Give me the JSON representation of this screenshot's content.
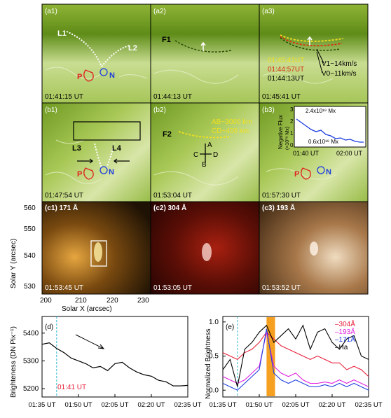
{
  "panels_a": [
    {
      "label": "(a1)",
      "time": "01:41:15 UT"
    },
    {
      "label": "(a2)",
      "time": "01:44:13 UT"
    },
    {
      "label": "(a3)",
      "time": "01:45:41 UT"
    }
  ],
  "panels_b": [
    {
      "label": "(b1)",
      "time": "01:47:54 UT"
    },
    {
      "label": "(b2)",
      "time": "01:53:04 UT"
    },
    {
      "label": "(b3)",
      "time": "01:57:30 UT"
    }
  ],
  "annotations": {
    "L1": "L1",
    "L2": "L2",
    "P": "P",
    "N": "N",
    "F1": "F1",
    "a3_t1": "01:45:41UT",
    "a3_t2": "01:44:57UT",
    "a3_t3": "01:44:13UT",
    "V1": "V1~14km/s",
    "V0": "V0~11km/s",
    "L3": "L3",
    "L4": "L4",
    "F2": "F2",
    "AB": "AB~3000 km",
    "CD": "CD~400 km",
    "A": "A",
    "B": "B",
    "C": "C",
    "D": "D"
  },
  "inset": {
    "ylabel": "Negative Flux",
    "yunit": "(×10¹⁹ Mx)",
    "flux_hi": "2.4x10¹⁹ Mx",
    "flux_lo": "0.6x10¹⁹ Mx",
    "x_start": "01:40 UT",
    "x_end": "02:00 UT",
    "yticks": [
      "0",
      "1",
      "2",
      "3"
    ]
  },
  "panels_c": [
    {
      "label": "(c1) 171 Å",
      "time": "01:53:45 UT"
    },
    {
      "label": "(c2) 304 Å",
      "time": "01:53:05 UT"
    },
    {
      "label": "(c3) 193 Å",
      "time": "01:53:52 UT"
    }
  ],
  "c_axes": {
    "ylabel": "Solar Y (arcsec)",
    "xlabel": "Solar X (arcsec)",
    "yticks": [
      "560",
      "550",
      "540",
      "530"
    ],
    "xticks": [
      "200",
      "210",
      "220",
      "230"
    ]
  },
  "chart_data": [
    {
      "type": "line",
      "panel": "(d)",
      "ylabel": "Brighteness (DN Pix⁻¹)",
      "marker": "01:41 UT",
      "yticks": [
        "5400",
        "5300",
        "5200"
      ],
      "xticks": [
        "01:35 UT",
        "01:50 UT",
        "02:05 UT",
        "02:20 UT",
        "02:35 UT"
      ],
      "ylim": [
        5170,
        5460
      ],
      "x_minutes": [
        0,
        3,
        6,
        9,
        12,
        15,
        18,
        21,
        24,
        27,
        30,
        33,
        36,
        39,
        42,
        45,
        48,
        51,
        54,
        57,
        60
      ],
      "values": [
        5360,
        5365,
        5345,
        5330,
        5310,
        5300,
        5290,
        5275,
        5280,
        5265,
        5290,
        5295,
        5275,
        5260,
        5250,
        5245,
        5230,
        5225,
        5210,
        5210,
        5212
      ]
    },
    {
      "type": "line",
      "panel": "(e)",
      "ylabel": "Normalized Brightness",
      "yticks": [
        "0.0",
        "0.5",
        "1.0"
      ],
      "xticks": [
        "01:35 UT",
        "01:50 UT",
        "02:05 UT",
        "02:20 UT",
        "02:35 UT"
      ],
      "ylim": [
        -0.1,
        1.08
      ],
      "legend": [
        "–304Å",
        "–193Å",
        "–171Å",
        "–Ha"
      ],
      "colors": [
        "#e8203a",
        "#e020e0",
        "#2040e0",
        "#000000"
      ],
      "x_minutes": [
        0,
        3,
        6,
        9,
        12,
        15,
        18,
        21,
        24,
        27,
        30,
        33,
        36,
        39,
        42,
        45,
        48,
        51,
        54,
        57,
        60
      ],
      "series": [
        {
          "name": "304Å",
          "values": [
            0.55,
            0.5,
            0.45,
            0.55,
            0.6,
            0.7,
            0.85,
            0.75,
            0.65,
            0.6,
            0.55,
            0.5,
            0.45,
            0.5,
            0.45,
            0.4,
            0.4,
            0.3,
            0.35,
            0.3,
            0.2
          ]
        },
        {
          "name": "193Å",
          "values": [
            0.2,
            0.15,
            0.1,
            0.15,
            0.25,
            0.35,
            0.85,
            0.35,
            0.25,
            0.2,
            0.25,
            0.15,
            0.1,
            0.1,
            0.12,
            0.1,
            0.15,
            0.1,
            0.15,
            0.1,
            0.05
          ]
        },
        {
          "name": "171Å",
          "values": [
            0.1,
            0.05,
            0.0,
            0.1,
            0.2,
            0.3,
            0.9,
            0.25,
            0.15,
            0.1,
            0.15,
            0.1,
            0.05,
            0.05,
            0.08,
            0.05,
            0.1,
            0.05,
            0.1,
            0.05,
            0.0
          ]
        },
        {
          "name": "Ha",
          "values": [
            0.3,
            0.45,
            0.05,
            0.6,
            0.7,
            0.85,
            0.95,
            0.7,
            0.8,
            0.9,
            0.75,
            0.95,
            0.6,
            0.85,
            0.9,
            0.7,
            0.6,
            0.75,
            0.8,
            0.5,
            0.45
          ]
        }
      ]
    }
  ]
}
